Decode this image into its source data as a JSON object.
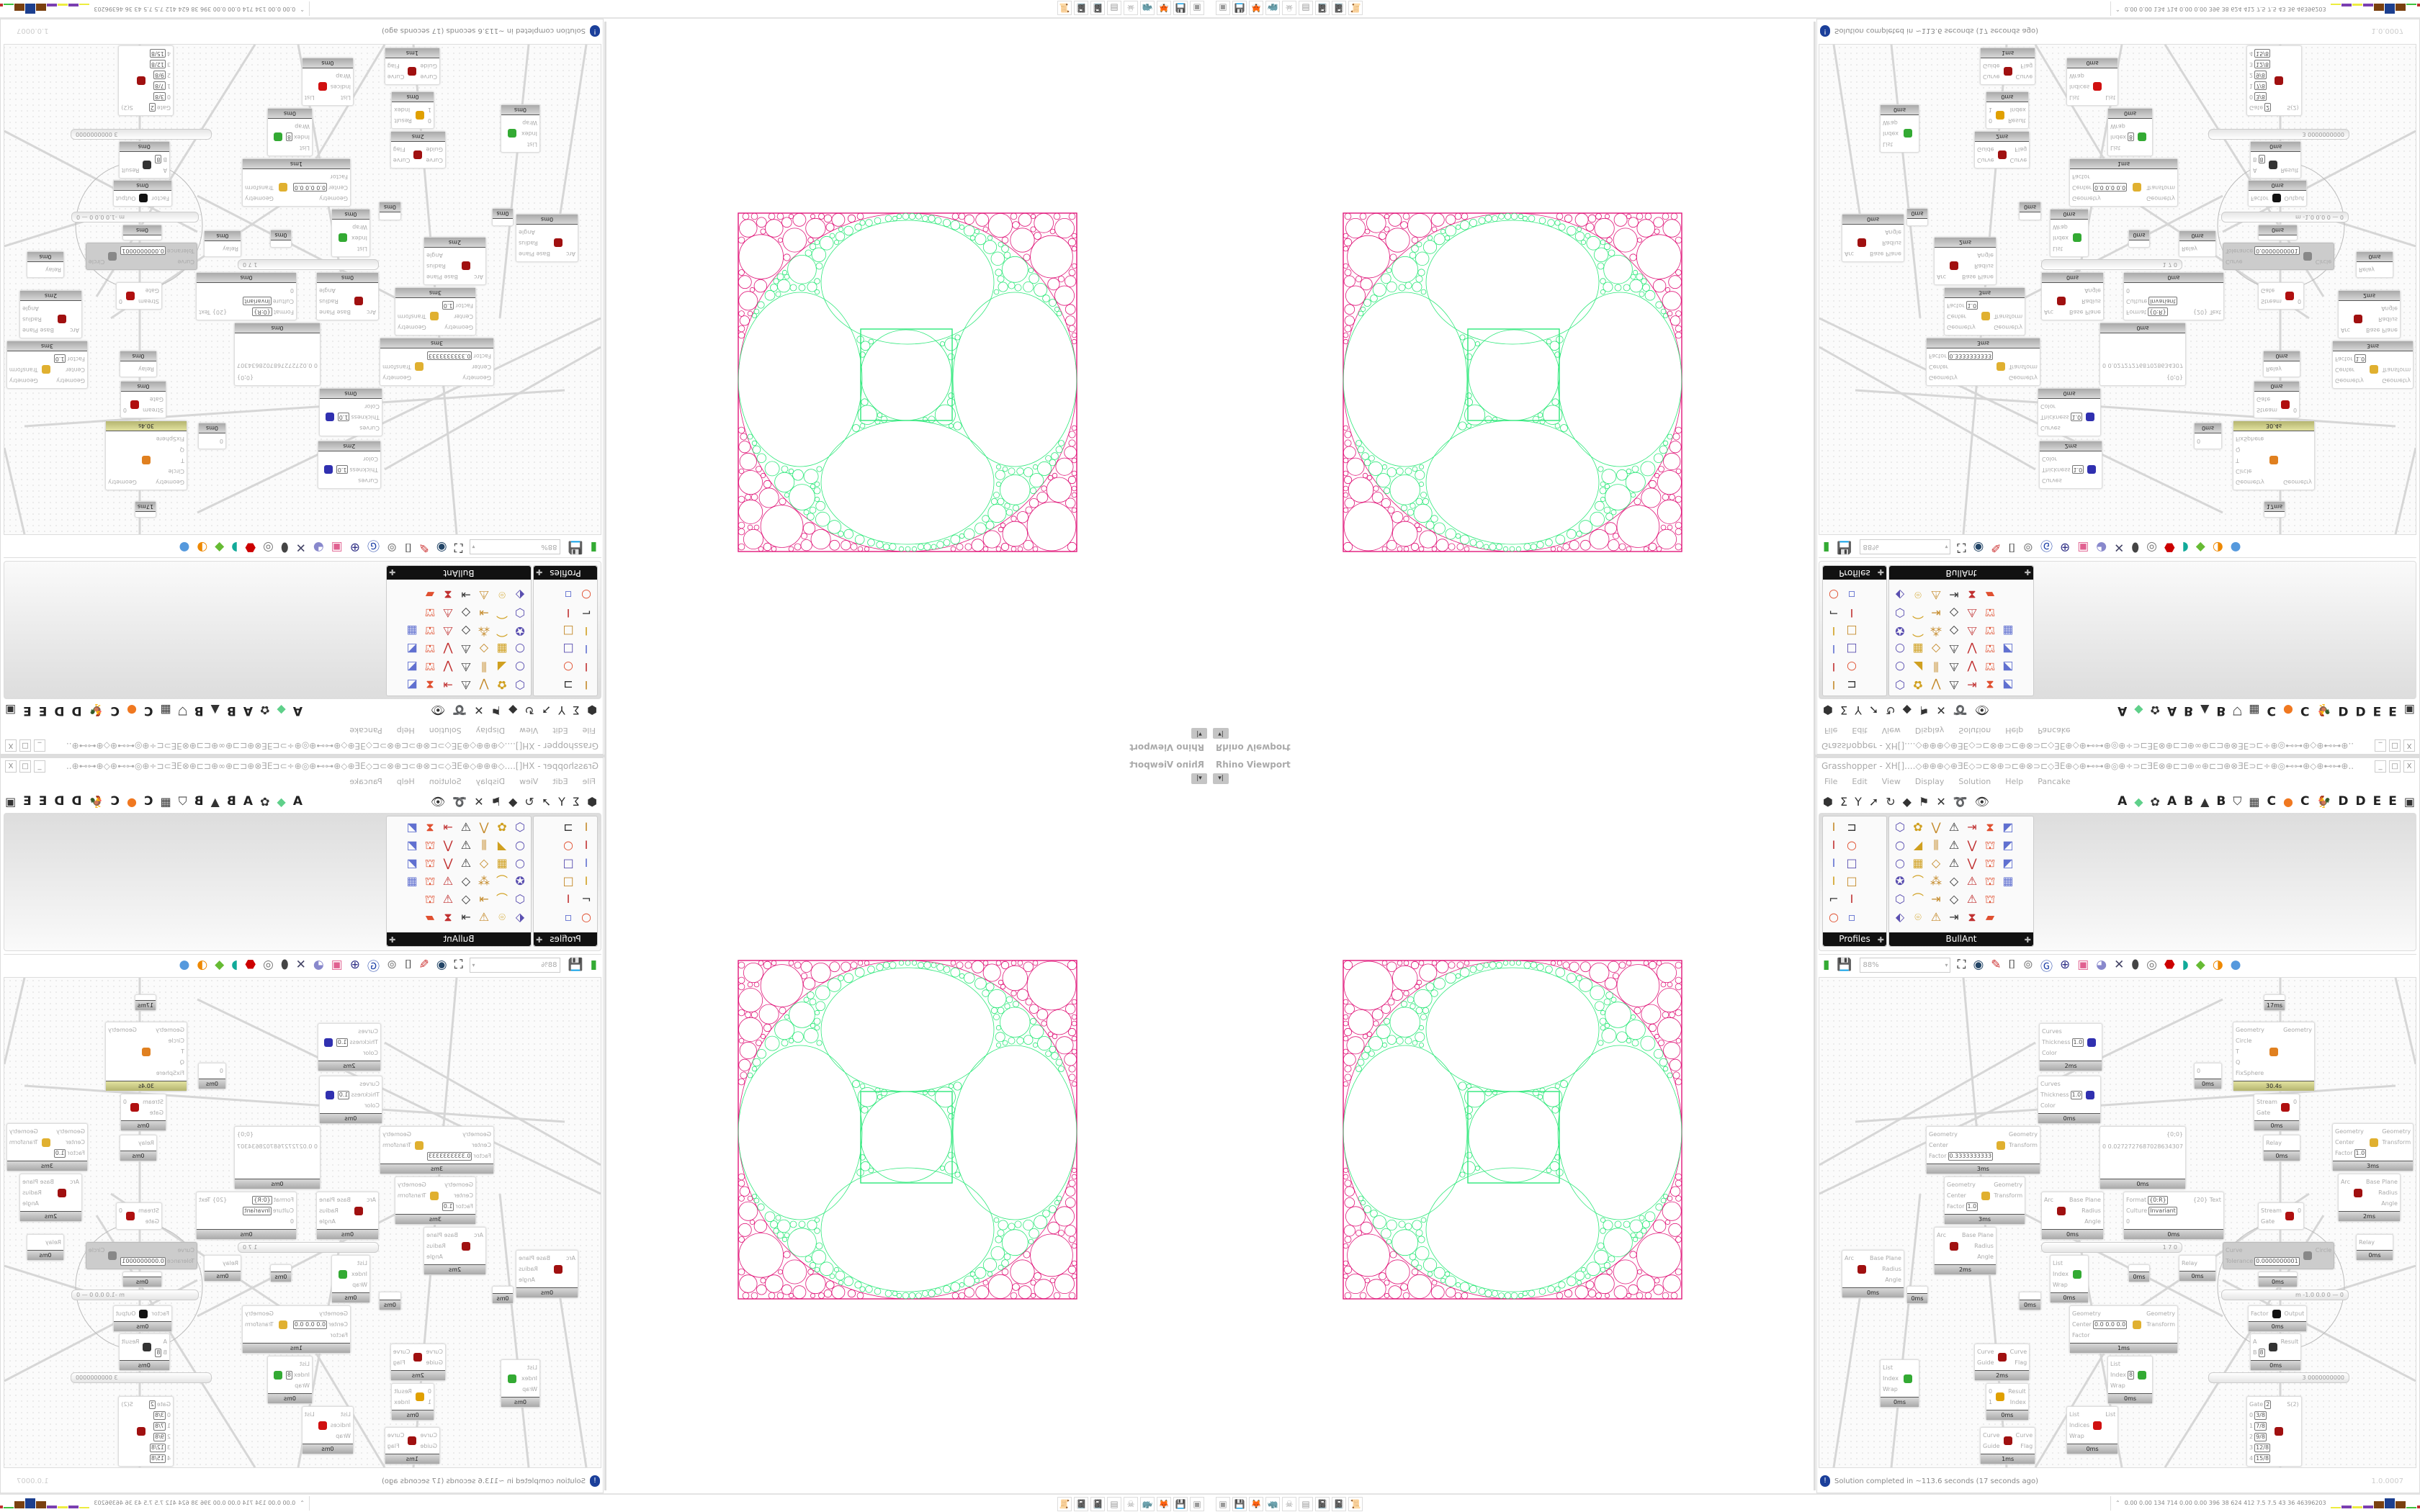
{
  "viewport": {
    "title": "Rhino Viewport",
    "dropdown_icon": "dropdown-arrow-icon"
  },
  "grasshopper": {
    "title": "Grasshopper - XH[]....◇⊕⊕⊕◇⊕ƎE◇⊃⊏⊗⊕⊃⊏⊕⊗⊃⊏◇ƎE⊕◇⊕⊷⊶⊕◎⊕÷⊃⊏ƎE⊗⊕⊏⊐⊕∞⊕⊏⊐⊕⊗ƎE⊃⊏÷⊕◎⊷⊶⊕◇⊕⊷⊶⊕...",
    "window_buttons": [
      "_",
      "□",
      "X"
    ],
    "menu": [
      "File",
      "Edit",
      "View",
      "Display",
      "Solution",
      "Help",
      "Pancake"
    ],
    "category_icons": [
      "⬢",
      "Σ",
      "Y",
      "➚",
      "↻",
      "◆",
      "⚑",
      "✕",
      "➰",
      "👁"
    ],
    "tab_items": [
      "A",
      "◆",
      "✿",
      "A",
      "B",
      "▲",
      "B",
      "⛉",
      "▦",
      "C",
      "●",
      "C",
      "🐓",
      "D",
      "D",
      "E",
      "E",
      "▣"
    ],
    "tab_colors": {
      "leaf": "#5fd08a",
      "orange": "#f07820"
    },
    "panels": [
      {
        "label": "Profiles",
        "icons": [
          "Ⅰ",
          "⊐",
          "Ⅰ",
          "○",
          "Ⅰ",
          "□",
          "Ⅰ",
          "□",
          "⌐",
          "Ⅰ",
          "○",
          "▫"
        ]
      },
      {
        "label": "BullAnt",
        "icons": [
          "⬡",
          "✿",
          "⋁",
          "⚠",
          "⇥",
          "⧗",
          "◩",
          "○",
          "◢",
          "⫼",
          "⚠",
          "⋁",
          "⛫",
          "◩",
          "○",
          "▦",
          "◇",
          "⚠",
          "⋁",
          "⛫",
          "◩",
          "✪",
          "⌒",
          "⁂",
          "◇",
          "⚠",
          "⛫",
          "▦",
          "⬡",
          "⌒",
          "⇥",
          "◇",
          "⚠",
          "⛫",
          "",
          "⬖",
          "⌾",
          "⚠",
          "⇥",
          "⧗",
          "▰",
          ""
        ]
      }
    ],
    "canvas_toolbar": {
      "zoom": "88%",
      "icons": [
        "new-file",
        "save",
        "zoom-extents",
        "eye",
        "sketch",
        "bake",
        "gha-export",
        "gh-info",
        "gh-search",
        "package",
        "bulb",
        "wires",
        "capsule",
        "ring",
        "cube-red",
        "shape-teal",
        "shape-green",
        "sphere-orange",
        "sphere-blue"
      ]
    },
    "nodes": [
      {
        "inputs": [],
        "outputs": [],
        "time": "17ms",
        "icon": ""
      },
      {
        "inputs": [
          "Curves",
          "Thickness",
          "Color"
        ],
        "values": {
          "1": "1.0"
        },
        "outputs": [],
        "time": "2ms",
        "icon": "pen"
      },
      {
        "inputs": [
          "Curves",
          "Thickness",
          "Color"
        ],
        "values": {
          "1": "1.0"
        },
        "outputs": [],
        "time": "0ms",
        "icon": "pen"
      },
      {
        "inputs": [
          "0"
        ],
        "outputs": [],
        "time": "0ms",
        "icon": ""
      },
      {
        "inputs": [
          "Geometry",
          "Circle",
          "T",
          "Q",
          "FixSphere"
        ],
        "outputs": [
          "Geometry"
        ],
        "time": "30.4s",
        "icon": "puzzle",
        "hot": true
      },
      {
        "inputs": [
          "0 0.0272727687028634307"
        ],
        "outputs": [
          "{0;0}"
        ],
        "time": "0ms",
        "icon": ""
      },
      {
        "inputs": [
          "Stream",
          "Gate"
        ],
        "outputs": [
          "0"
        ],
        "time": "0ms",
        "icon": "gate"
      },
      {
        "inputs": [
          "Geometry",
          "Center",
          "Factor"
        ],
        "values": {
          "2": "0.3333333333"
        },
        "outputs": [
          "Geometry",
          "Transform"
        ],
        "time": "3ms",
        "icon": "scale"
      },
      {
        "inputs": [
          "Relay"
        ],
        "outputs": [],
        "time": "0ms",
        "icon": ""
      },
      {
        "inputs": [
          "Geometry",
          "Center",
          "Factor"
        ],
        "values": {
          "2": "1.0"
        },
        "outputs": [
          "Geometry",
          "Transform"
        ],
        "time": "3ms",
        "icon": "scale"
      },
      {
        "inputs": [
          "Arc"
        ],
        "outputs": [
          "Base Plane",
          "Radius",
          "Angle"
        ],
        "time": "0ms",
        "icon": "target"
      },
      {
        "inputs": [
          "Format",
          "Culture",
          "0"
        ],
        "values": {
          "0": "{0:R}",
          "1": "Invariant"
        },
        "outputs": [
          "{20} Text"
        ],
        "time": "0ms",
        "icon": ""
      },
      {
        "inputs": [
          "Curve",
          "Tolerance"
        ],
        "values": {
          "1": "0.0000000001"
        },
        "outputs": [
          "Circle"
        ],
        "time": "",
        "icon": "ring",
        "disabled": true
      },
      {
        "inputs": [
          "Geometry",
          "Center",
          "Factor"
        ],
        "values": {
          "2": "1.0"
        },
        "outputs": [
          "Geometry",
          "Transform"
        ],
        "time": "3ms",
        "icon": "scale"
      },
      {
        "inputs": [
          "Arc"
        ],
        "outputs": [
          "Base Plane",
          "Radius",
          "Angle"
        ],
        "time": "2ms",
        "icon": "target"
      },
      {
        "inputs": [
          "Stream",
          "Gate"
        ],
        "outputs": [
          "0"
        ],
        "time": "",
        "icon": "gate"
      },
      {
        "inputs": [
          "Arc"
        ],
        "outputs": [
          "Base Plane",
          "Radius",
          "Angle"
        ],
        "time": "2ms",
        "icon": "target"
      },
      {
        "inputs": [
          "Arc"
        ],
        "outputs": [
          "Base Plane",
          "Radius",
          "Angle"
        ],
        "time": "0ms",
        "icon": "target"
      },
      {
        "inputs": [],
        "outputs": [],
        "time": "0ms",
        "icon": ""
      },
      {
        "inputs": [
          "List",
          "Index",
          "Wrap"
        ],
        "outputs": [
          ""
        ],
        "time": "0ms",
        "icon": "listitem"
      },
      {
        "inputs": [],
        "outputs": [],
        "time": "0ms",
        "icon": ""
      },
      {
        "inputs": [],
        "outputs": [],
        "time": "0ms",
        "icon": ""
      },
      {
        "inputs": [
          "Relay"
        ],
        "outputs": [],
        "time": "0ms",
        "icon": ""
      },
      {
        "inputs": [
          "Relay"
        ],
        "outputs": [],
        "time": "0ms",
        "icon": ""
      },
      {
        "inputs": [],
        "outputs": [],
        "time": "0ms",
        "icon": ""
      },
      {
        "inputs": [
          "Geometry",
          "Center",
          "Factor"
        ],
        "values": {
          "1": "0.0 0.0 0.0"
        },
        "outputs": [
          "Geometry",
          "Transform"
        ],
        "time": "1ms",
        "icon": "scale"
      },
      {
        "inputs": [
          "Factor"
        ],
        "outputs": [
          "Output"
        ],
        "time": "0ms",
        "icon": "pi"
      },
      {
        "inputs": [
          "A",
          "B"
        ],
        "values": {
          "1": "8"
        },
        "outputs": [
          "Result"
        ],
        "time": "0ms",
        "icon": "divide"
      },
      {
        "inputs": [
          "Curve",
          "Guide"
        ],
        "outputs": [
          "Curve",
          "Flag"
        ],
        "time": "2ms",
        "icon": "flip"
      },
      {
        "inputs": [
          "List",
          "Index",
          "Wrap"
        ],
        "values": {
          "1": "8"
        },
        "outputs": [
          ""
        ],
        "time": "0ms",
        "icon": "listitem"
      },
      {
        "inputs": [
          "List",
          "Index",
          "Wrap"
        ],
        "outputs": [
          ""
        ],
        "time": "0ms",
        "icon": "listitem"
      },
      {
        "inputs": [
          "0",
          "1"
        ],
        "outputs": [
          "Result",
          "Index"
        ],
        "time": "0ms",
        "icon": "pick"
      },
      {
        "inputs": [
          "List",
          "Indices",
          "Wrap"
        ],
        "outputs": [
          "List"
        ],
        "time": "0ms",
        "icon": "cull"
      },
      {
        "inputs": [
          "Curve",
          "Guide"
        ],
        "outputs": [
          "Curve",
          "Flag"
        ],
        "time": "1ms",
        "icon": "flip"
      },
      {
        "inputs": [
          "Gate",
          "0",
          "1",
          "2",
          "3",
          "4"
        ],
        "values": {
          "0": "2",
          "1": "3/8",
          "2": "7/8",
          "3": "9/8",
          "4": "12/8",
          "5": "15/8"
        },
        "outputs": [
          "S(2)"
        ],
        "time": "",
        "icon": "stream"
      }
    ],
    "sliders": [
      "1 7 0",
      "m -1.0 0.0 0 — 0",
      "3 0000000000"
    ],
    "status": {
      "message": "Solution completed in ~113.6 seconds (17 seconds ago)",
      "version": "1.0.0007"
    }
  },
  "taskbar": {
    "apps": [
      "▣",
      "💾",
      "🦊",
      "🦏",
      "☠",
      "▤",
      "📓",
      "📓",
      "📜"
    ],
    "stats": "0.00 0.00 134 714 0.00 0.00 396 38 624 412 7.5 7.5 43 36 46396203",
    "expand_icon": "⌃",
    "meter_levels": [
      0.15,
      0.3,
      0.25,
      0.3,
      0.7,
      1.0,
      0.7,
      0.15,
      0.3
    ],
    "meter_colors": [
      "#eded40",
      "#7a3fb0",
      "#eded40",
      "#7a3fb0",
      "#7a4010",
      "#1c3f8f",
      "#7a4010",
      "#40c040",
      "#c03030"
    ]
  },
  "colors": {
    "fractal_outer": "#e0187a",
    "fractal_inner": "#2ee87a",
    "node_hot": "#c8c87a"
  }
}
